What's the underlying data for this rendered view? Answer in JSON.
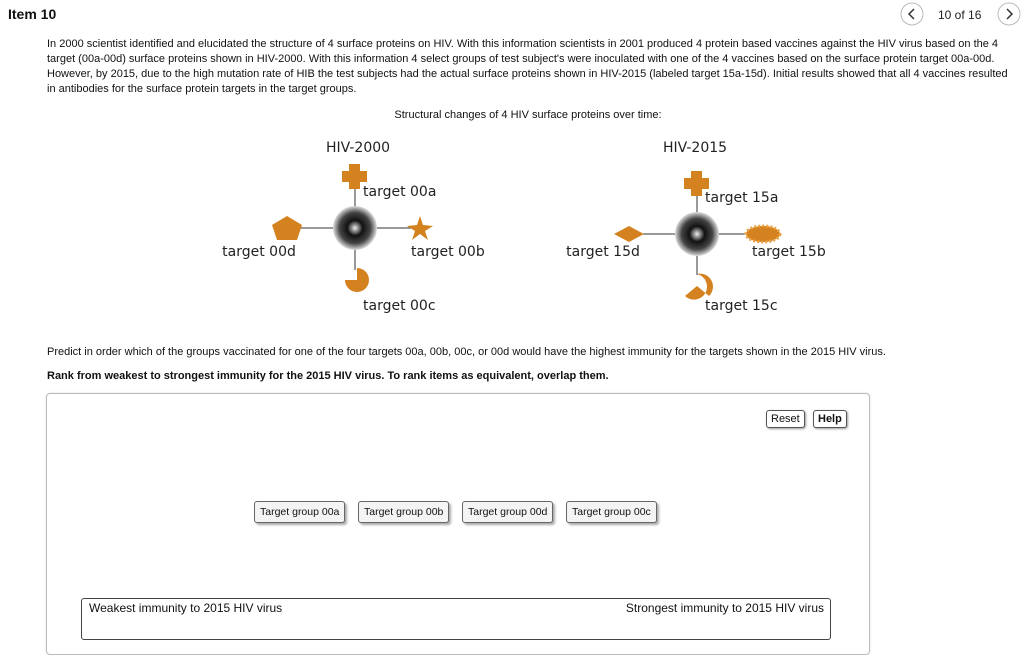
{
  "header": {
    "title": "Item 10",
    "pager": "10 of 16"
  },
  "question": {
    "paragraph": "In 2000 scientist identified and elucidated the structure of 4 surface proteins on HIV.  With this information scientists in 2001 produced 4 protein based vaccines against the HIV virus based on the 4 target (00a-00d) surface proteins shown in HIV-2000.  With this information 4 select groups of test subject's were inoculated with one of the 4 vaccines based on the surface protein target 00a-00d. However, by 2015, due to the high mutation rate of HIB the test subjects had the actual surface proteins shown in HIV-2015 (labeled target 15a-15d). Initial results showed that all 4 vaccines resulted in antibodies for the surface protein targets in the target groups."
  },
  "figure": {
    "caption": "Structural changes of 4 HIV surface proteins over time:",
    "diagrams": [
      {
        "title": "HIV-2000",
        "top": "target 00a",
        "right": "target 00b",
        "bottom": "target 00c",
        "left": "target 00d"
      },
      {
        "title": "HIV-2015",
        "top": "target 15a",
        "right": "target 15b",
        "bottom": "target 15c",
        "left": "target 15d"
      }
    ]
  },
  "prompt": "Predict in order which of the groups vaccinated for one of the four targets 00a, 00b, 00c, or 00d would have the highest immunity for the targets shown in the 2015 HIV virus.",
  "instruction": "Rank from weakest to strongest immunity for the 2015 HIV virus. To rank items as equivalent, overlap them.",
  "buttons": {
    "reset": "Reset",
    "help": "Help"
  },
  "items": [
    "Target group 00a",
    "Target group 00b",
    "Target group 00d",
    "Target group 00c"
  ],
  "rank_bar": {
    "left": "Weakest immunity to 2015 HIV virus",
    "right": "Strongest immunity to 2015 HIV virus"
  }
}
